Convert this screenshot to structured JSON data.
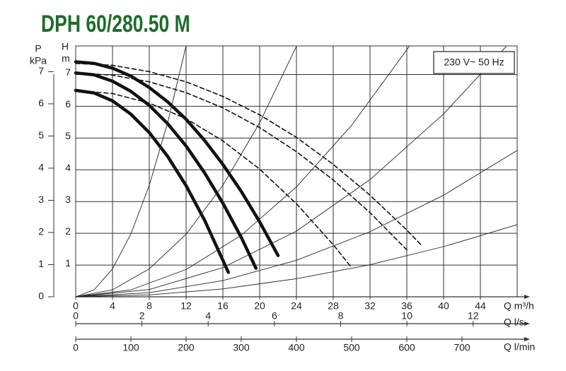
{
  "chart_data": {
    "type": "line",
    "title": "DPH 60/280.50 M",
    "legend_note": "230 V~ 50 Hz",
    "y_label_top": "H",
    "y_label_unit": "m",
    "y2_label_top": "P",
    "y2_label_unit": "kPa",
    "ylim": [
      0,
      7.9
    ],
    "yticks": [
      0,
      1,
      2,
      3,
      4,
      5,
      6,
      7
    ],
    "y2lim": [
      0,
      7.8
    ],
    "y2ticks": [
      0,
      1,
      2,
      3,
      4,
      5,
      6,
      7
    ],
    "grid": true,
    "x_axes": [
      {
        "label": "Q m³/h",
        "xlim": [
          0,
          48
        ],
        "xticks": [
          0,
          4,
          8,
          12,
          16,
          20,
          24,
          28,
          32,
          36,
          40,
          44
        ]
      },
      {
        "label": "Q l/s",
        "xlim": [
          0,
          13.33
        ],
        "xticks": [
          0,
          2,
          4,
          6,
          8,
          10,
          12
        ]
      },
      {
        "label": "Q l/min",
        "xlim": [
          0,
          800
        ],
        "xticks": [
          0,
          100,
          200,
          300,
          400,
          500,
          600,
          700
        ]
      }
    ],
    "series": [
      {
        "style": "thick",
        "color": "#111111",
        "x": [
          0,
          2,
          4,
          6,
          8,
          10,
          12,
          14,
          16,
          18,
          20,
          22
        ],
        "values": [
          7.4,
          7.35,
          7.2,
          6.95,
          6.59,
          6.14,
          5.59,
          4.93,
          4.17,
          3.32,
          2.36,
          1.3
        ]
      },
      {
        "style": "thick",
        "color": "#111111",
        "x": [
          0,
          2,
          4,
          6,
          8,
          10,
          12,
          14,
          16,
          18,
          19.6
        ],
        "values": [
          7.05,
          6.99,
          6.79,
          6.47,
          6.03,
          5.45,
          4.75,
          3.91,
          2.95,
          1.87,
          0.9
        ]
      },
      {
        "style": "thick",
        "color": "#111111",
        "x": [
          0,
          2,
          4,
          6,
          8,
          10,
          12,
          14,
          16.6
        ],
        "values": [
          6.5,
          6.42,
          6.17,
          5.75,
          5.17,
          4.42,
          3.5,
          2.42,
          0.77
        ]
      },
      {
        "style": "dashed",
        "color": "#111111",
        "x": [
          0,
          4,
          8,
          12,
          16,
          20,
          24,
          28,
          32,
          36,
          37.7
        ],
        "values": [
          7.35,
          7.29,
          7.09,
          6.77,
          6.31,
          5.73,
          5.02,
          4.17,
          3.2,
          2.1,
          1.59
        ]
      },
      {
        "style": "dashed",
        "color": "#111111",
        "x": [
          0,
          4,
          8,
          12,
          16,
          20,
          24,
          28,
          32,
          36.2
        ],
        "values": [
          7.05,
          6.98,
          6.77,
          6.43,
          5.95,
          5.33,
          4.57,
          3.68,
          2.65,
          1.42
        ]
      },
      {
        "style": "dashed",
        "color": "#111111",
        "x": [
          0,
          4,
          8,
          12,
          16,
          20,
          24,
          28,
          30
        ],
        "values": [
          6.5,
          6.4,
          6.1,
          5.61,
          4.91,
          4.02,
          2.93,
          1.64,
          0.92
        ]
      },
      {
        "style": "thin",
        "color": "#222222",
        "x": [
          0,
          2,
          4,
          6,
          8,
          10,
          12
        ],
        "values": [
          0,
          0.22,
          0.88,
          1.98,
          3.51,
          5.49,
          7.9
        ]
      },
      {
        "style": "thin",
        "color": "#222222",
        "x": [
          0,
          4,
          8,
          12,
          16,
          20,
          24
        ],
        "values": [
          0,
          0.22,
          0.88,
          1.97,
          3.51,
          5.48,
          7.89
        ]
      },
      {
        "style": "thin",
        "color": "#222222",
        "x": [
          0,
          6,
          12,
          18,
          24,
          30,
          36.3
        ],
        "values": [
          0,
          0.22,
          0.86,
          1.94,
          3.46,
          5.4,
          7.9
        ]
      },
      {
        "style": "thin",
        "color": "#222222",
        "x": [
          0,
          8,
          16,
          24,
          32,
          40,
          46.8
        ],
        "values": [
          0,
          0.23,
          0.92,
          2.07,
          3.69,
          5.76,
          7.88
        ]
      },
      {
        "style": "thin",
        "color": "#222222",
        "x": [
          0,
          8,
          16,
          24,
          32,
          40,
          48
        ],
        "values": [
          0,
          0.13,
          0.51,
          1.15,
          2.05,
          3.2,
          4.61
        ]
      },
      {
        "style": "thin",
        "color": "#222222",
        "x": [
          0,
          8,
          16,
          24,
          32,
          40,
          48
        ],
        "values": [
          0,
          0.06,
          0.25,
          0.57,
          1.01,
          1.58,
          2.27
        ]
      }
    ]
  }
}
